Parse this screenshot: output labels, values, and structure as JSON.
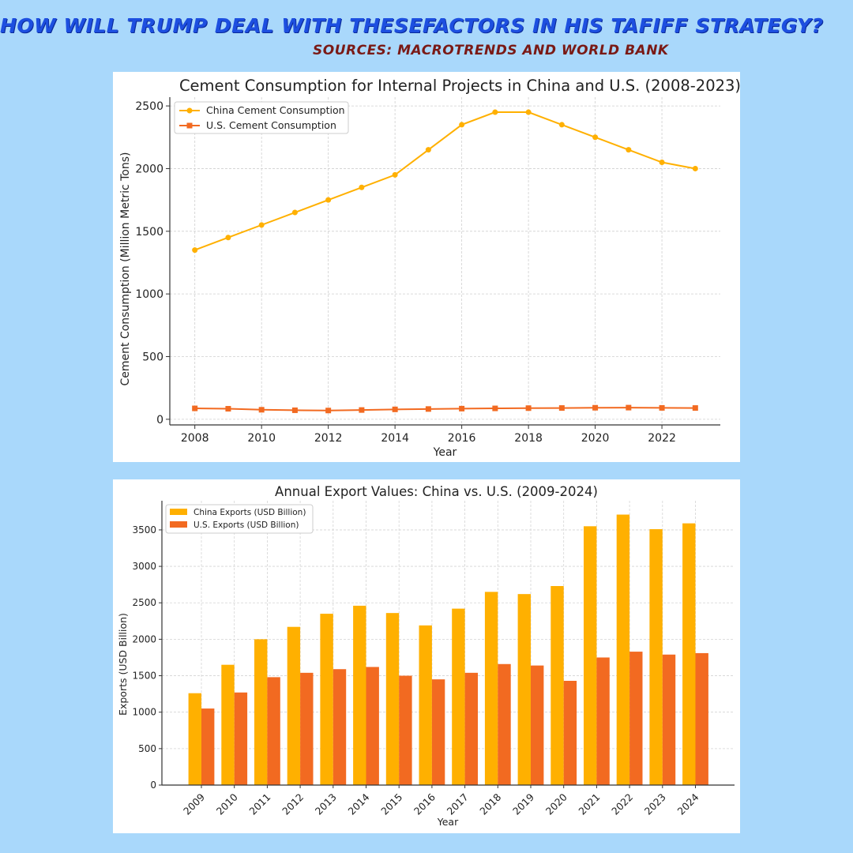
{
  "header": {
    "title": "How will Trump deal with thesefactors in his tafiff strategy?",
    "sources": "Sources: Macrotrends and World Bank"
  },
  "colors": {
    "background": "#a9d8fb",
    "china": "#ffb000",
    "us": "#f26a21",
    "title": "#1d4fe0",
    "sources": "#7a1a16"
  },
  "chart_data": [
    {
      "type": "line",
      "title": "Cement Consumption for Internal Projects in China and U.S. (2008-2023)",
      "xlabel": "Year",
      "ylabel": "Cement Consumption (Million Metric Tons)",
      "x": [
        2008,
        2009,
        2010,
        2011,
        2012,
        2013,
        2014,
        2015,
        2016,
        2017,
        2018,
        2019,
        2020,
        2021,
        2022,
        2023
      ],
      "xticks": [
        "2008",
        "2010",
        "2012",
        "2014",
        "2016",
        "2018",
        "2020",
        "2022"
      ],
      "yticks": [
        "0",
        "500",
        "1000",
        "1500",
        "2000",
        "2500"
      ],
      "ylim": [
        -45,
        2570
      ],
      "xlim": [
        2007.25,
        2023.75
      ],
      "grid": true,
      "legend_position": "top-left",
      "series": [
        {
          "name": "China Cement Consumption",
          "marker": "circle",
          "values": [
            1350,
            1450,
            1550,
            1650,
            1750,
            1850,
            1950,
            2150,
            2350,
            2450,
            2450,
            2350,
            2250,
            2150,
            2050,
            2000
          ]
        },
        {
          "name": "U.S. Cement Consumption",
          "marker": "square",
          "values": [
            87,
            84,
            76,
            72,
            70,
            74,
            79,
            82,
            85,
            87,
            89,
            90,
            92,
            93,
            91,
            90
          ]
        }
      ]
    },
    {
      "type": "bar",
      "title": "Annual Export Values: China vs. U.S. (2009-2024)",
      "xlabel": "Year",
      "ylabel": "Exports (USD Billion)",
      "categories": [
        "2009",
        "2010",
        "2011",
        "2012",
        "2013",
        "2014",
        "2015",
        "2016",
        "2017",
        "2018",
        "2019",
        "2020",
        "2021",
        "2022",
        "2023",
        "2024"
      ],
      "yticks": [
        "0",
        "500",
        "1000",
        "1500",
        "2000",
        "2500",
        "3000",
        "3500"
      ],
      "ylim": [
        0,
        3900
      ],
      "grid": true,
      "legend_position": "top-left",
      "series": [
        {
          "name": "China Exports (USD Billion)",
          "values": [
            1260,
            1650,
            2000,
            2170,
            2350,
            2460,
            2360,
            2190,
            2420,
            2650,
            2620,
            2730,
            3550,
            3710,
            3510,
            3590
          ]
        },
        {
          "name": "U.S. Exports (USD Billion)",
          "values": [
            1050,
            1270,
            1480,
            1540,
            1590,
            1620,
            1500,
            1450,
            1540,
            1660,
            1640,
            1430,
            1750,
            1830,
            1790,
            1810
          ]
        }
      ]
    }
  ]
}
